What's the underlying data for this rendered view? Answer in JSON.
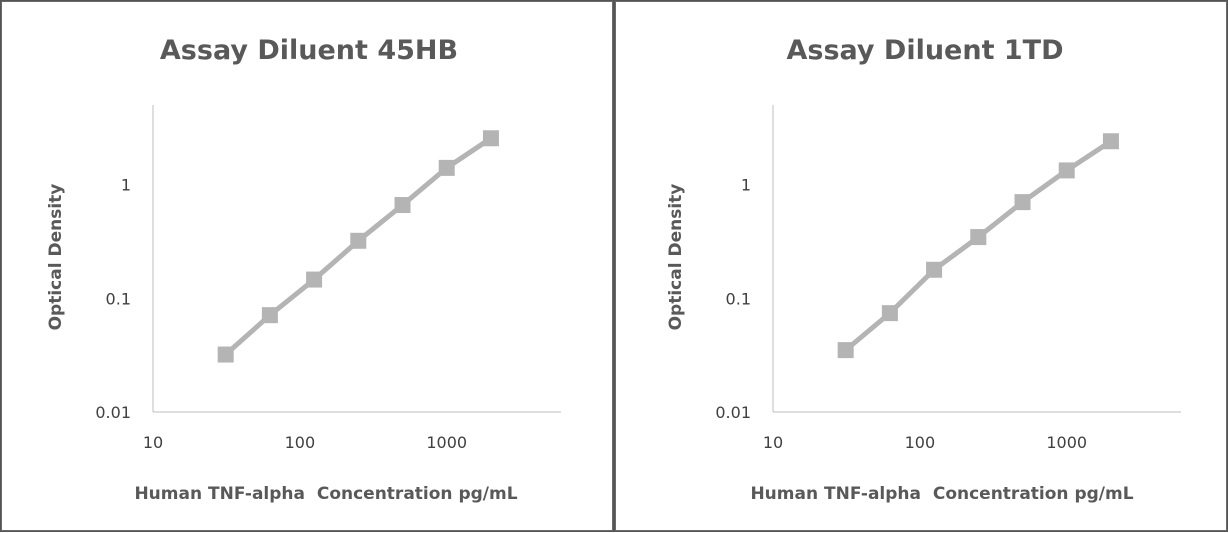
{
  "chart_data": [
    {
      "type": "line",
      "title": "Assay Diluent 45HB",
      "xlabel": "Human TNF-alpha  Concentration pg/mL",
      "ylabel": "Optical Density",
      "xscale": "log",
      "yscale": "log",
      "xlim": [
        10,
        6000
      ],
      "ylim": [
        0.01,
        5
      ],
      "xticks": [
        10,
        100,
        1000
      ],
      "xtick_labels": [
        "10",
        "100",
        "1000"
      ],
      "yticks": [
        0.01,
        0.1,
        1
      ],
      "ytick_labels": [
        "0.01",
        "0.1",
        "1"
      ],
      "grid": false,
      "series": [
        {
          "x": [
            31.25,
            62.5,
            125,
            250,
            500,
            1000,
            2000
          ],
          "y": [
            0.032,
            0.071,
            0.146,
            0.32,
            0.66,
            1.4,
            2.55
          ],
          "color": "#b4b4b4",
          "marker": "square"
        }
      ]
    },
    {
      "type": "line",
      "title": "Assay Diluent 1TD",
      "xlabel": "Human TNF-alpha  Concentration pg/mL",
      "ylabel": "Optical Density",
      "xscale": "log",
      "yscale": "log",
      "xlim": [
        10,
        6000
      ],
      "ylim": [
        0.01,
        5
      ],
      "xticks": [
        10,
        100,
        1000
      ],
      "xtick_labels": [
        "10",
        "100",
        "1000"
      ],
      "yticks": [
        0.01,
        0.1,
        1
      ],
      "ytick_labels": [
        "0.01",
        "0.1",
        "1"
      ],
      "grid": false,
      "series": [
        {
          "x": [
            31.25,
            62.5,
            125,
            250,
            500,
            1000,
            2000
          ],
          "y": [
            0.035,
            0.074,
            0.178,
            0.345,
            0.7,
            1.33,
            2.4
          ],
          "color": "#b4b4b4",
          "marker": "square"
        }
      ]
    }
  ]
}
